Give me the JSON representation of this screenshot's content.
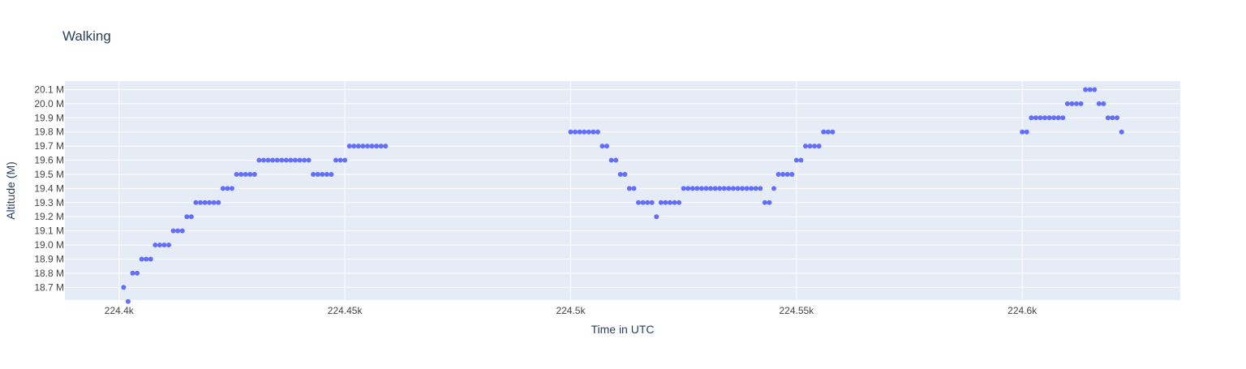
{
  "chart_data": {
    "type": "scatter",
    "title": "Walking",
    "xlabel": "Time in UTC",
    "ylabel": "Altitude (M)",
    "xlim": [
      224388,
      224635
    ],
    "ylim": [
      18.61,
      20.16
    ],
    "x_ticks": [
      224400,
      224450,
      224500,
      224550,
      224600
    ],
    "x_tick_labels": [
      "224.4k",
      "224.45k",
      "224.5k",
      "224.55k",
      "224.6k"
    ],
    "y_ticks": [
      18.7,
      18.8,
      18.9,
      19.0,
      19.1,
      19.2,
      19.3,
      19.4,
      19.5,
      19.6,
      19.7,
      19.8,
      19.9,
      20.0,
      20.1
    ],
    "y_tick_labels": [
      "18.7 M",
      "18.8 M",
      "18.9 M",
      "19.0 M",
      "19.1 M",
      "19.2 M",
      "19.3 M",
      "19.4 M",
      "19.5 M",
      "19.6 M",
      "19.7 M",
      "19.8 M",
      "19.9 M",
      "20.0 M",
      "20.1 M"
    ],
    "grid": true,
    "colors": {
      "marker": "#636efa",
      "plot_bg": "#e5ecf6",
      "grid": "#ffffff",
      "text": "#2a3f5f",
      "tick_text": "#444444"
    },
    "series": [
      {
        "points": [
          [
            224401,
            18.7
          ],
          [
            224402,
            18.6
          ],
          [
            224403,
            18.8
          ],
          [
            224404,
            18.8
          ],
          [
            224405,
            18.9
          ],
          [
            224406,
            18.9
          ],
          [
            224407,
            18.9
          ],
          [
            224408,
            19.0
          ],
          [
            224409,
            19.0
          ],
          [
            224410,
            19.0
          ],
          [
            224411,
            19.0
          ],
          [
            224412,
            19.1
          ],
          [
            224413,
            19.1
          ],
          [
            224414,
            19.1
          ],
          [
            224415,
            19.2
          ],
          [
            224416,
            19.2
          ],
          [
            224417,
            19.3
          ],
          [
            224418,
            19.3
          ],
          [
            224419,
            19.3
          ],
          [
            224420,
            19.3
          ],
          [
            224421,
            19.3
          ],
          [
            224422,
            19.3
          ],
          [
            224423,
            19.4
          ],
          [
            224424,
            19.4
          ],
          [
            224425,
            19.4
          ],
          [
            224426,
            19.5
          ],
          [
            224427,
            19.5
          ],
          [
            224428,
            19.5
          ],
          [
            224429,
            19.5
          ],
          [
            224430,
            19.5
          ],
          [
            224431,
            19.6
          ],
          [
            224432,
            19.6
          ],
          [
            224433,
            19.6
          ],
          [
            224434,
            19.6
          ],
          [
            224435,
            19.6
          ],
          [
            224436,
            19.6
          ],
          [
            224437,
            19.6
          ],
          [
            224438,
            19.6
          ],
          [
            224439,
            19.6
          ],
          [
            224440,
            19.6
          ],
          [
            224441,
            19.6
          ],
          [
            224442,
            19.6
          ],
          [
            224443,
            19.5
          ],
          [
            224444,
            19.5
          ],
          [
            224445,
            19.5
          ],
          [
            224446,
            19.5
          ],
          [
            224447,
            19.5
          ],
          [
            224448,
            19.6
          ],
          [
            224449,
            19.6
          ],
          [
            224450,
            19.6
          ],
          [
            224451,
            19.7
          ],
          [
            224452,
            19.7
          ],
          [
            224453,
            19.7
          ],
          [
            224454,
            19.7
          ],
          [
            224455,
            19.7
          ],
          [
            224456,
            19.7
          ],
          [
            224457,
            19.7
          ],
          [
            224458,
            19.7
          ],
          [
            224459,
            19.7
          ],
          [
            224500,
            19.8
          ],
          [
            224501,
            19.8
          ],
          [
            224502,
            19.8
          ],
          [
            224503,
            19.8
          ],
          [
            224504,
            19.8
          ],
          [
            224505,
            19.8
          ],
          [
            224506,
            19.8
          ],
          [
            224507,
            19.7
          ],
          [
            224508,
            19.7
          ],
          [
            224509,
            19.6
          ],
          [
            224510,
            19.6
          ],
          [
            224511,
            19.5
          ],
          [
            224512,
            19.5
          ],
          [
            224513,
            19.4
          ],
          [
            224514,
            19.4
          ],
          [
            224515,
            19.3
          ],
          [
            224516,
            19.3
          ],
          [
            224517,
            19.3
          ],
          [
            224518,
            19.3
          ],
          [
            224519,
            19.2
          ],
          [
            224520,
            19.3
          ],
          [
            224521,
            19.3
          ],
          [
            224522,
            19.3
          ],
          [
            224523,
            19.3
          ],
          [
            224524,
            19.3
          ],
          [
            224525,
            19.4
          ],
          [
            224526,
            19.4
          ],
          [
            224527,
            19.4
          ],
          [
            224528,
            19.4
          ],
          [
            224529,
            19.4
          ],
          [
            224530,
            19.4
          ],
          [
            224531,
            19.4
          ],
          [
            224532,
            19.4
          ],
          [
            224533,
            19.4
          ],
          [
            224534,
            19.4
          ],
          [
            224535,
            19.4
          ],
          [
            224536,
            19.4
          ],
          [
            224537,
            19.4
          ],
          [
            224538,
            19.4
          ],
          [
            224539,
            19.4
          ],
          [
            224540,
            19.4
          ],
          [
            224541,
            19.4
          ],
          [
            224542,
            19.4
          ],
          [
            224543,
            19.3
          ],
          [
            224544,
            19.3
          ],
          [
            224545,
            19.4
          ],
          [
            224546,
            19.5
          ],
          [
            224547,
            19.5
          ],
          [
            224548,
            19.5
          ],
          [
            224549,
            19.5
          ],
          [
            224550,
            19.6
          ],
          [
            224551,
            19.6
          ],
          [
            224552,
            19.7
          ],
          [
            224553,
            19.7
          ],
          [
            224554,
            19.7
          ],
          [
            224555,
            19.7
          ],
          [
            224556,
            19.8
          ],
          [
            224557,
            19.8
          ],
          [
            224558,
            19.8
          ],
          [
            224600,
            19.8
          ],
          [
            224601,
            19.8
          ],
          [
            224602,
            19.9
          ],
          [
            224603,
            19.9
          ],
          [
            224604,
            19.9
          ],
          [
            224605,
            19.9
          ],
          [
            224606,
            19.9
          ],
          [
            224607,
            19.9
          ],
          [
            224608,
            19.9
          ],
          [
            224609,
            19.9
          ],
          [
            224610,
            20.0
          ],
          [
            224611,
            20.0
          ],
          [
            224612,
            20.0
          ],
          [
            224613,
            20.0
          ],
          [
            224614,
            20.1
          ],
          [
            224615,
            20.1
          ],
          [
            224616,
            20.1
          ],
          [
            224617,
            20.0
          ],
          [
            224618,
            20.0
          ],
          [
            224619,
            19.9
          ],
          [
            224620,
            19.9
          ],
          [
            224621,
            19.9
          ],
          [
            224622,
            19.8
          ]
        ]
      }
    ]
  }
}
